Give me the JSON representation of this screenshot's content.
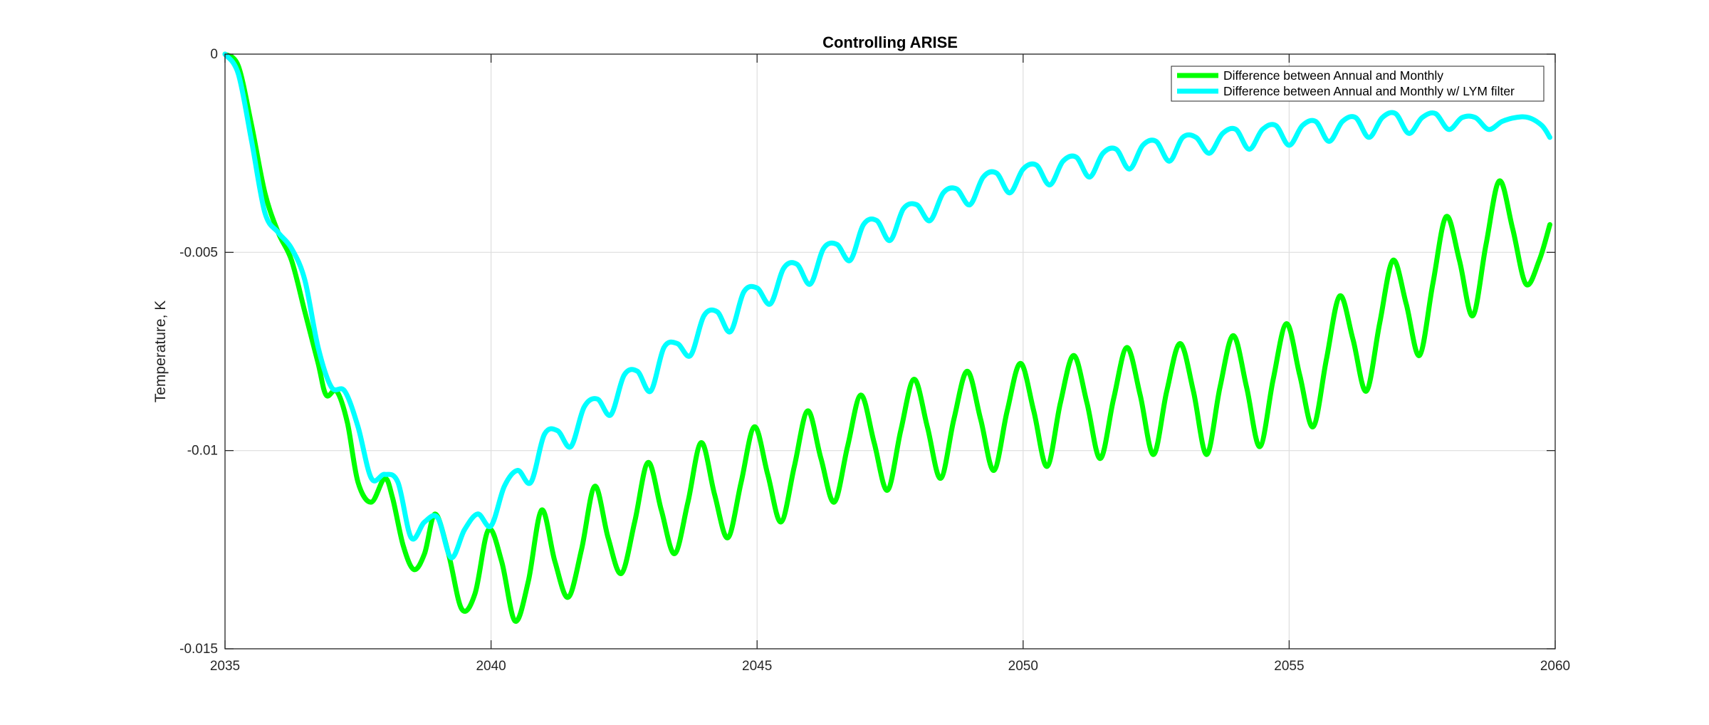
{
  "chart_data": {
    "type": "line",
    "title": "Controlling ARISE",
    "xlabel": "",
    "ylabel": "Temperature, K",
    "xlim": [
      2035,
      2060
    ],
    "ylim": [
      -0.015,
      0
    ],
    "x_ticks": [
      2035,
      2040,
      2045,
      2050,
      2055,
      2060
    ],
    "x_tick_labels": [
      "2035",
      "2040",
      "2045",
      "2050",
      "2055",
      "2060"
    ],
    "y_ticks": [
      0,
      -0.005,
      -0.01,
      -0.015
    ],
    "y_tick_labels": [
      "0",
      "-0.005",
      "-0.01",
      "-0.015"
    ],
    "grid": true,
    "legend_position": "top-right",
    "series": [
      {
        "name": "Difference between Annual and Monthly",
        "color": "#00ff00",
        "x": [
          2035.0,
          2035.25,
          2035.5,
          2035.75,
          2036.0,
          2036.25,
          2036.5,
          2036.75,
          2036.9,
          2037.1,
          2037.3,
          2037.5,
          2037.75,
          2038.0,
          2038.15,
          2038.35,
          2038.55,
          2038.75,
          2038.95,
          2039.2,
          2039.45,
          2039.7,
          2039.95,
          2040.2,
          2040.45,
          2040.7,
          2040.95,
          2041.2,
          2041.45,
          2041.7,
          2041.95,
          2042.2,
          2042.45,
          2042.7,
          2042.95,
          2043.2,
          2043.45,
          2043.7,
          2043.95,
          2044.2,
          2044.45,
          2044.7,
          2044.95,
          2045.2,
          2045.45,
          2045.7,
          2045.95,
          2046.2,
          2046.45,
          2046.7,
          2046.95,
          2047.2,
          2047.45,
          2047.7,
          2047.95,
          2048.2,
          2048.45,
          2048.7,
          2048.95,
          2049.2,
          2049.45,
          2049.7,
          2049.95,
          2050.2,
          2050.45,
          2050.7,
          2050.95,
          2051.2,
          2051.45,
          2051.7,
          2051.95,
          2052.2,
          2052.45,
          2052.7,
          2052.95,
          2053.2,
          2053.45,
          2053.7,
          2053.95,
          2054.2,
          2054.45,
          2054.7,
          2054.95,
          2055.2,
          2055.45,
          2055.7,
          2055.95,
          2056.2,
          2056.45,
          2056.7,
          2056.95,
          2057.2,
          2057.45,
          2057.7,
          2057.95,
          2058.2,
          2058.45,
          2058.7,
          2058.95,
          2059.2,
          2059.45,
          2059.7,
          2059.9
        ],
        "y": [
          0,
          -0.0003,
          -0.0018,
          -0.0035,
          -0.0045,
          -0.0052,
          -0.0065,
          -0.0078,
          -0.0086,
          -0.0085,
          -0.0093,
          -0.0108,
          -0.0113,
          -0.0107,
          -0.0112,
          -0.0124,
          -0.013,
          -0.0126,
          -0.0116,
          -0.0126,
          -0.014,
          -0.0136,
          -0.012,
          -0.0128,
          -0.0143,
          -0.0133,
          -0.0115,
          -0.0128,
          -0.0137,
          -0.0125,
          -0.0109,
          -0.0122,
          -0.0131,
          -0.0118,
          -0.0103,
          -0.0115,
          -0.0126,
          -0.0113,
          -0.0098,
          -0.0111,
          -0.0122,
          -0.0108,
          -0.0094,
          -0.0106,
          -0.0118,
          -0.0104,
          -0.009,
          -0.0102,
          -0.0113,
          -0.0099,
          -0.0086,
          -0.0098,
          -0.011,
          -0.0095,
          -0.0082,
          -0.0094,
          -0.0107,
          -0.0092,
          -0.008,
          -0.0092,
          -0.0105,
          -0.009,
          -0.0078,
          -0.009,
          -0.0104,
          -0.0088,
          -0.0076,
          -0.0088,
          -0.0102,
          -0.0087,
          -0.0074,
          -0.0086,
          -0.0101,
          -0.0085,
          -0.0073,
          -0.0085,
          -0.0101,
          -0.0084,
          -0.0071,
          -0.0084,
          -0.0099,
          -0.0082,
          -0.0068,
          -0.0081,
          -0.0094,
          -0.0077,
          -0.0061,
          -0.0072,
          -0.0085,
          -0.0068,
          -0.0052,
          -0.0063,
          -0.0076,
          -0.0058,
          -0.0041,
          -0.0052,
          -0.0066,
          -0.0048,
          -0.0032,
          -0.0044,
          -0.0058,
          -0.0052,
          -0.0043
        ]
      },
      {
        "name": "Difference between Annual and Monthly w/ LYM filter",
        "color": "#00ffff",
        "x": [
          2035.0,
          2035.25,
          2035.5,
          2035.75,
          2036.0,
          2036.25,
          2036.5,
          2036.75,
          2037.0,
          2037.25,
          2037.5,
          2037.75,
          2038.0,
          2038.25,
          2038.5,
          2038.75,
          2039.0,
          2039.25,
          2039.5,
          2039.75,
          2040.0,
          2040.25,
          2040.5,
          2040.75,
          2041.0,
          2041.25,
          2041.5,
          2041.75,
          2042.0,
          2042.25,
          2042.5,
          2042.75,
          2043.0,
          2043.25,
          2043.5,
          2043.75,
          2044.0,
          2044.25,
          2044.5,
          2044.75,
          2045.0,
          2045.25,
          2045.5,
          2045.75,
          2046.0,
          2046.25,
          2046.5,
          2046.75,
          2047.0,
          2047.25,
          2047.5,
          2047.75,
          2048.0,
          2048.25,
          2048.5,
          2048.75,
          2049.0,
          2049.25,
          2049.5,
          2049.75,
          2050.0,
          2050.25,
          2050.5,
          2050.75,
          2051.0,
          2051.25,
          2051.5,
          2051.75,
          2052.0,
          2052.25,
          2052.5,
          2052.75,
          2053.0,
          2053.25,
          2053.5,
          2053.75,
          2054.0,
          2054.25,
          2054.5,
          2054.75,
          2055.0,
          2055.25,
          2055.5,
          2055.75,
          2056.0,
          2056.25,
          2056.5,
          2056.75,
          2057.0,
          2057.25,
          2057.5,
          2057.75,
          2058.0,
          2058.25,
          2058.5,
          2058.75,
          2059.0,
          2059.25,
          2059.5,
          2059.75,
          2059.9
        ],
        "y": [
          0,
          -0.0005,
          -0.0022,
          -0.004,
          -0.0045,
          -0.0049,
          -0.0057,
          -0.0074,
          -0.0084,
          -0.0085,
          -0.0094,
          -0.0107,
          -0.0106,
          -0.0108,
          -0.0122,
          -0.0118,
          -0.0117,
          -0.0127,
          -0.012,
          -0.0116,
          -0.0119,
          -0.0109,
          -0.0105,
          -0.0108,
          -0.0096,
          -0.0095,
          -0.0099,
          -0.0089,
          -0.0087,
          -0.0091,
          -0.0081,
          -0.008,
          -0.0085,
          -0.0074,
          -0.0073,
          -0.0076,
          -0.0066,
          -0.0065,
          -0.007,
          -0.006,
          -0.0059,
          -0.0063,
          -0.0054,
          -0.0053,
          -0.0058,
          -0.0049,
          -0.0048,
          -0.0052,
          -0.0043,
          -0.0042,
          -0.0047,
          -0.0039,
          -0.0038,
          -0.0042,
          -0.0035,
          -0.0034,
          -0.0038,
          -0.0031,
          -0.003,
          -0.0035,
          -0.0029,
          -0.0028,
          -0.0033,
          -0.0027,
          -0.0026,
          -0.0031,
          -0.0025,
          -0.0024,
          -0.0029,
          -0.0023,
          -0.0022,
          -0.0027,
          -0.0021,
          -0.0021,
          -0.0025,
          -0.002,
          -0.0019,
          -0.0024,
          -0.0019,
          -0.0018,
          -0.0023,
          -0.0018,
          -0.0017,
          -0.0022,
          -0.0017,
          -0.0016,
          -0.0021,
          -0.0016,
          -0.0015,
          -0.002,
          -0.0016,
          -0.0015,
          -0.0019,
          -0.0016,
          -0.0016,
          -0.0019,
          -0.0017,
          -0.0016,
          -0.0016,
          -0.0018,
          -0.0021
        ]
      }
    ]
  }
}
